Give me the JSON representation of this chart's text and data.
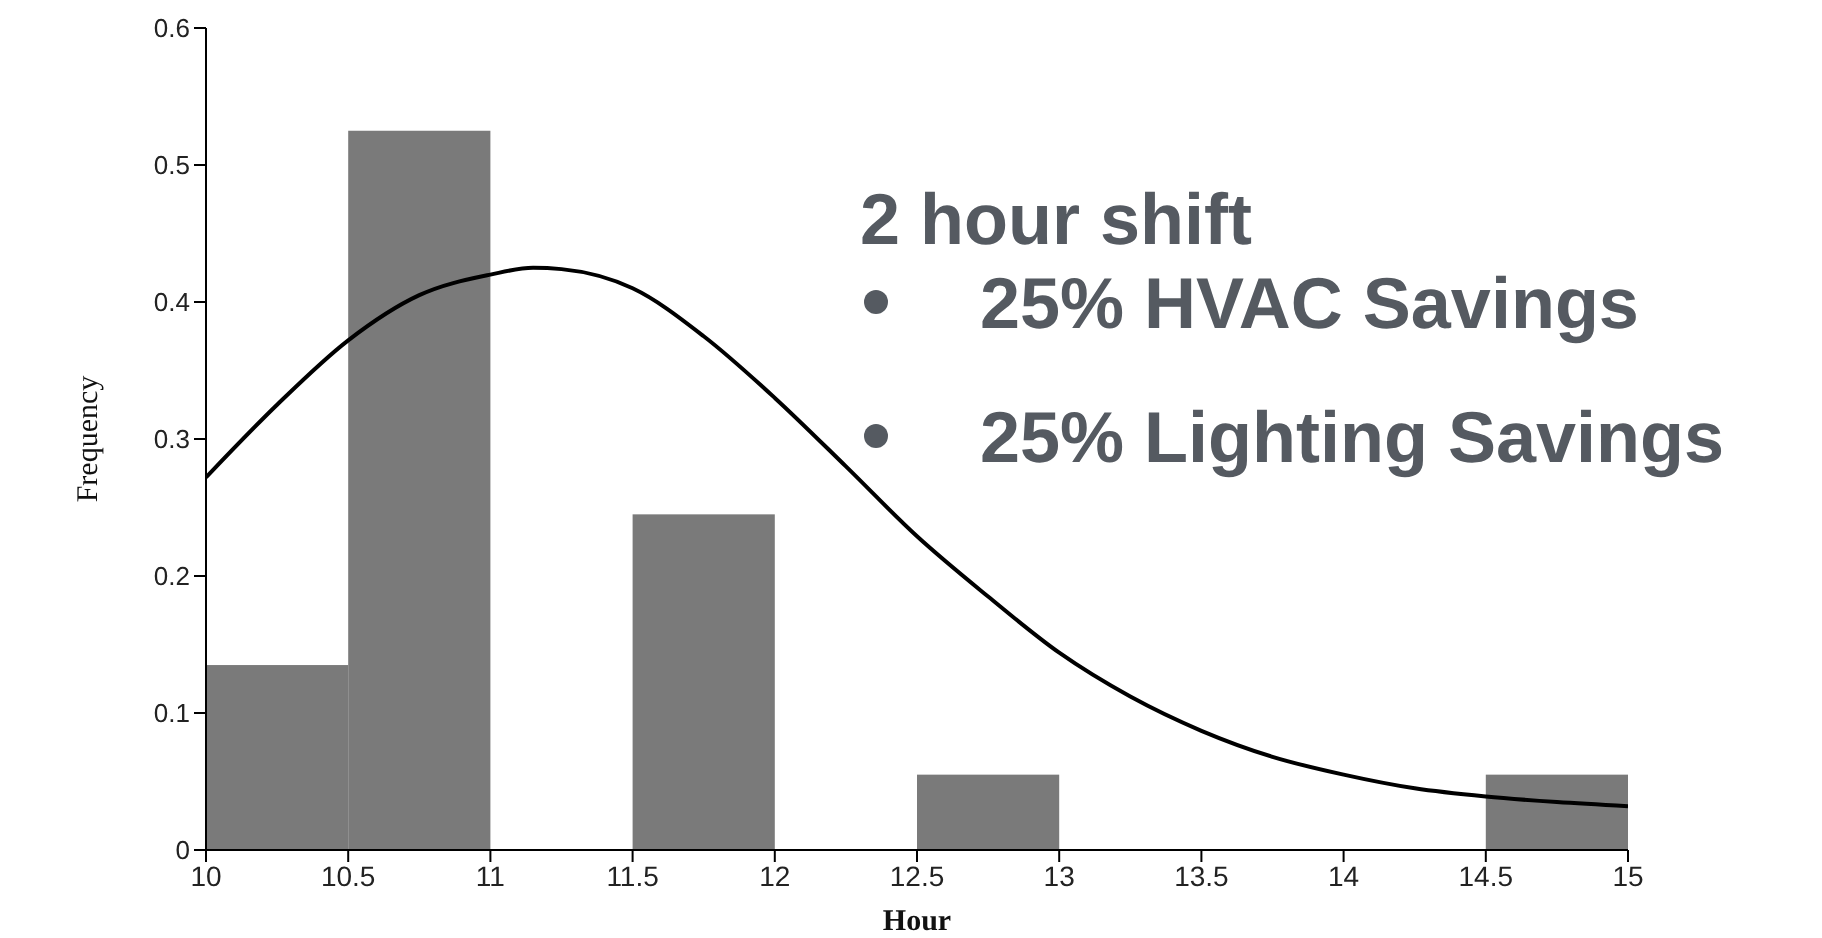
{
  "chart_data": {
    "type": "histogram",
    "xlabel": "Hour",
    "ylabel": "Frequency",
    "bins": [
      10,
      10.5,
      11,
      11.5,
      12,
      12.5,
      13,
      13.5,
      14,
      14.5,
      15
    ],
    "values": [
      0.135,
      0.525,
      0,
      0.245,
      0,
      0.055,
      0,
      0,
      0,
      0.055
    ],
    "color": "#7a7a7a",
    "series": [
      {
        "type": "line",
        "color": "#000000",
        "x": [
          10,
          10.25,
          10.5,
          10.75,
          11,
          11.15,
          11.25,
          11.5,
          11.75,
          12,
          12.25,
          12.5,
          12.75,
          13,
          13.25,
          13.5,
          13.75,
          14,
          14.25,
          14.5,
          14.75,
          15
        ],
        "values": [
          0.272,
          0.325,
          0.372,
          0.405,
          0.42,
          0.425,
          0.424,
          0.41,
          0.375,
          0.33,
          0.28,
          0.229,
          0.185,
          0.144,
          0.112,
          0.087,
          0.068,
          0.055,
          0.045,
          0.039,
          0.035,
          0.032
        ]
      }
    ],
    "xlim": [
      10,
      15
    ],
    "xticks": [
      10,
      10.5,
      11,
      11.5,
      12,
      12.5,
      13,
      13.5,
      14,
      14.5,
      15
    ],
    "ylim": [
      0,
      0.6
    ],
    "yticks": [
      0,
      0.1,
      0.2,
      0.3,
      0.4,
      0.5,
      0.6
    ],
    "grid": false,
    "legend": false,
    "marker": "none",
    "line_style": "solid",
    "annotations": [
      "2 hour shift",
      "25% HVAC Savings",
      "25% Lighting Savings"
    ]
  }
}
